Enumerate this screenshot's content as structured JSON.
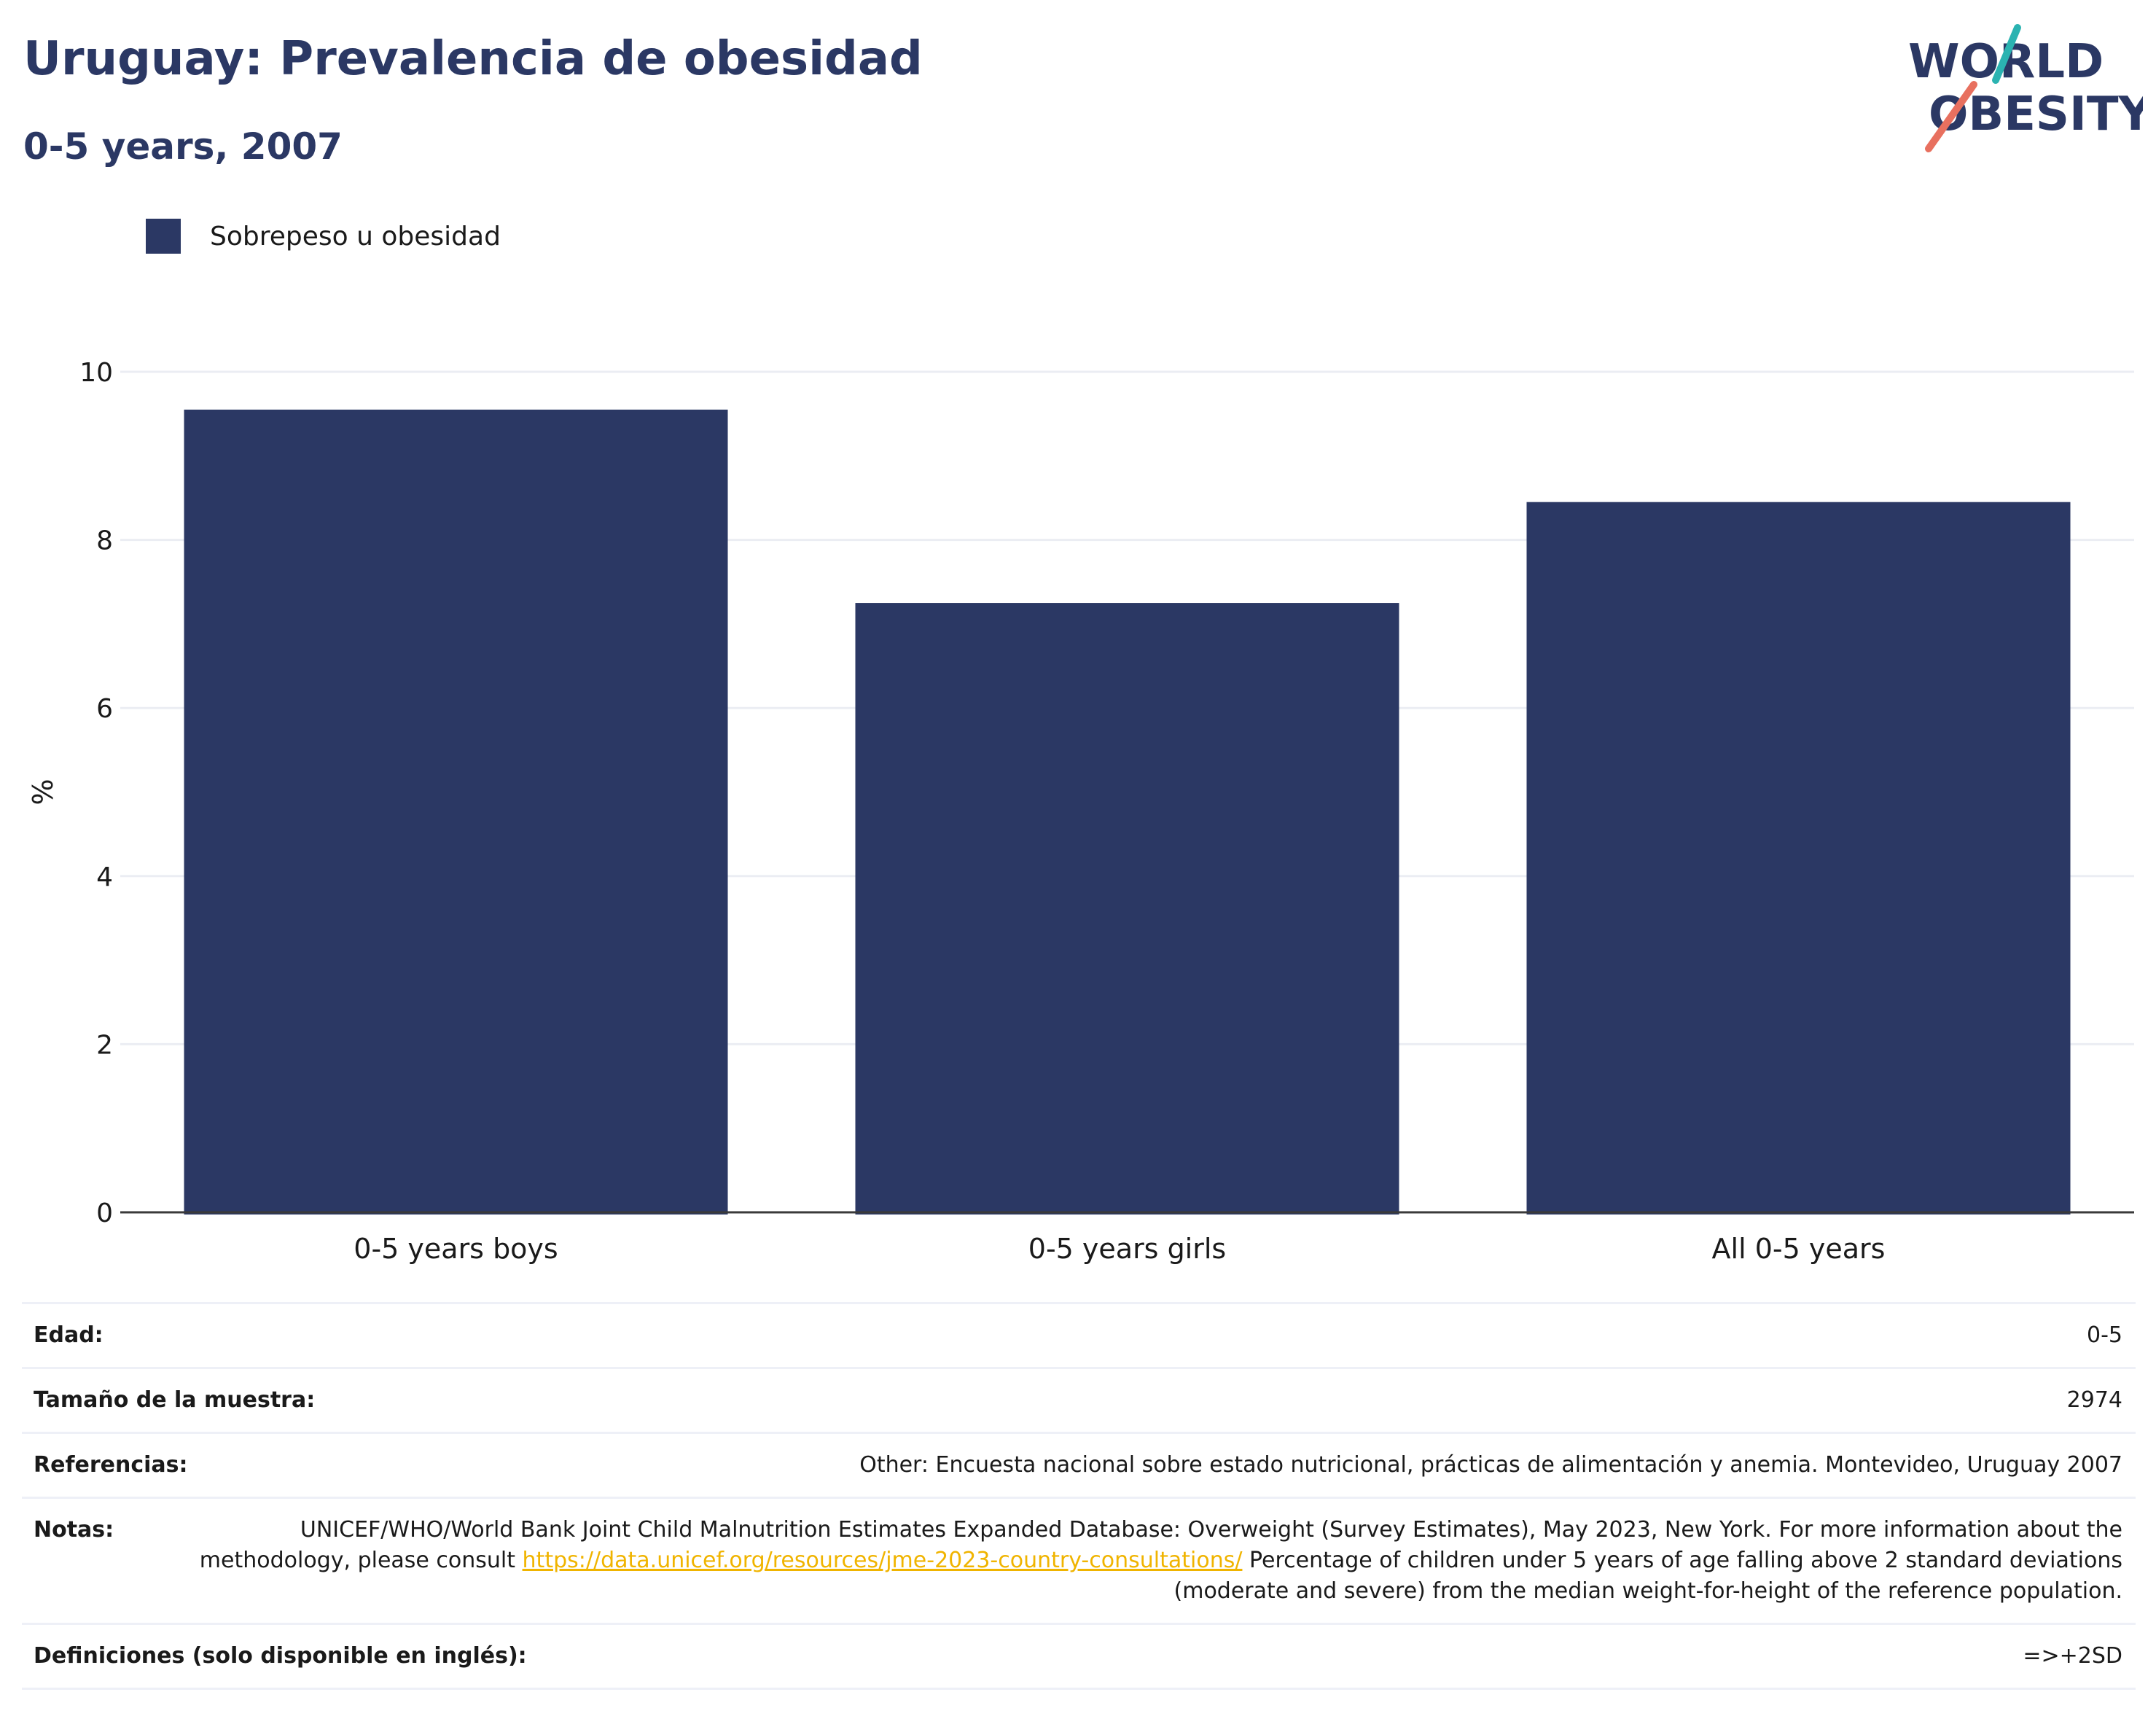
{
  "header": {
    "title": "Uruguay: Prevalencia de obesidad",
    "subtitle": "0-5 years, 2007"
  },
  "logo": {
    "line1": "WORLD",
    "line2": "OBESITY"
  },
  "colors": {
    "bar": "#2b3864",
    "title": "#2b3864",
    "logo_accent_teal": "#2bb3b1",
    "logo_accent_coral": "#e8705f",
    "link": "#f0b400"
  },
  "chart_data": {
    "type": "bar",
    "categories": [
      "0-5 years boys",
      "0-5 years girls",
      "All 0-5 years"
    ],
    "series": [
      {
        "name": "Sobrepeso u obesidad",
        "values": [
          9.55,
          7.25,
          8.45
        ]
      }
    ],
    "ylabel": "%",
    "xlabel": "",
    "ylim": [
      0,
      10
    ],
    "yticks": [
      0,
      2,
      4,
      6,
      8,
      10
    ],
    "grid": true,
    "legend_position": "top-left"
  },
  "meta": {
    "rows": [
      {
        "label": "Edad:",
        "value": "0-5"
      },
      {
        "label": "Tamaño de la muestra:",
        "value": "2974"
      },
      {
        "label": "Referencias:",
        "value": "Other: Encuesta nacional sobre estado nutricional, prácticas de alimentación y anemia. Montevideo, Uruguay 2007"
      }
    ],
    "notes": {
      "label": "Notas:",
      "text_before": "UNICEF/WHO/World Bank Joint Child Malnutrition Estimates Expanded Database: Overweight (Survey Estimates), May 2023, New York. For more information about the methodology, please consult ",
      "link": "https://data.unicef.org/resources/jme-2023-country-consultations/",
      "text_after": " Percentage of children under 5 years of age falling above 2 standard deviations (moderate and severe) from the median weight-for-height of the reference population."
    },
    "definitions": {
      "label": "Definiciones (solo disponible en inglés):",
      "value": "=>+2SD"
    }
  }
}
